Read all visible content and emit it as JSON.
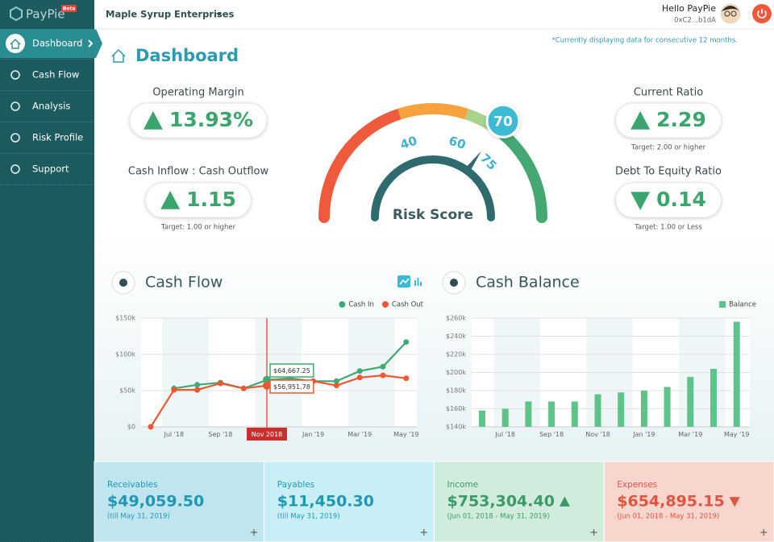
{
  "sidebar": {
    "brand": "PayPie",
    "badge": "Beta",
    "menu": [
      "Dashboard",
      "Cash Flow",
      "Analysis",
      "Risk Profile",
      "Support"
    ]
  },
  "topbar": {
    "company": "Maple Syrup Enterprises",
    "greeting": "Hello PayPie",
    "account": "0xC2...b1dA"
  },
  "page": {
    "title": "Dashboard",
    "note": "*Currently displaying data for consecutive 12 months."
  },
  "kpis": [
    {
      "label": "Operating Margin",
      "value": "13.93%",
      "direction": "up"
    },
    {
      "label": "Cash Inflow : Cash Outflow",
      "value": "1.15",
      "direction": "up",
      "target": "Target: 1.00 or higher"
    },
    {
      "label": "Current Ratio",
      "value": "2.29",
      "direction": "up",
      "target": "Target: 2.00 or higher"
    },
    {
      "label": "Debt To Equity Ratio",
      "value": "0.14",
      "direction": "down",
      "target": "Target: 1.00 or Less"
    }
  ],
  "risk": {
    "label": "Risk Score",
    "score": 70,
    "range": [
      0,
      100
    ],
    "ticks": [
      40,
      60,
      75
    ],
    "bands": [
      {
        "from": 0,
        "to": 40,
        "color": "#ef5a3c"
      },
      {
        "from": 40,
        "to": 60,
        "color": "#f7a23f"
      },
      {
        "from": 60,
        "to": 72,
        "color": "#a9d28c"
      },
      {
        "from": 72,
        "to": 100,
        "color": "#44a873"
      }
    ]
  },
  "chart_data": [
    {
      "type": "line",
      "title": "Cash Flow",
      "legend": "top-right",
      "grid": true,
      "categories": [
        null,
        "Jul '18",
        null,
        "Sep '18",
        null,
        "Nov 2018",
        null,
        "Jan '19",
        null,
        "Mar '19",
        null,
        "May '19"
      ],
      "series": [
        {
          "name": "Cash In",
          "color": "#3dab72",
          "values": [
            null,
            53000,
            58000,
            61000,
            53000,
            64667.25,
            67000,
            63000,
            63000,
            77000,
            83000,
            117000
          ],
          "value_labels": [
            null,
            null,
            null,
            null,
            null,
            "$64,667.25",
            null,
            null,
            null,
            null,
            null,
            null
          ]
        },
        {
          "name": "Cash Out",
          "color": "#f0562f",
          "values": [
            0,
            51000,
            51000,
            60000,
            53000,
            56951.78,
            62000,
            63000,
            57000,
            68000,
            71000,
            67000
          ],
          "value_labels": [
            null,
            null,
            null,
            null,
            null,
            "$56,951.78",
            null,
            null,
            null,
            null,
            null,
            null
          ]
        }
      ],
      "ylim": [
        0,
        150000
      ],
      "yticks": [
        {
          "value": 0,
          "label": "$0"
        },
        {
          "value": 50000,
          "label": "$50k"
        },
        {
          "value": 100000,
          "label": "$100k"
        },
        {
          "value": 150000,
          "label": "$150k"
        }
      ]
    },
    {
      "type": "bar",
      "title": "Cash Balance",
      "legend": "top-right",
      "grid": true,
      "categories": [
        null,
        "Jul '18",
        null,
        "Sep '18",
        null,
        "Nov '18",
        null,
        "Jan '19",
        null,
        "Mar '19",
        null,
        "May '19"
      ],
      "series": [
        {
          "name": "Balance",
          "color": "#5cc488",
          "values": [
            158000,
            160000,
            168000,
            168000,
            168000,
            176000,
            178000,
            180000,
            184000,
            195000,
            204000,
            256000
          ]
        }
      ],
      "ylim": [
        140000,
        260000
      ],
      "yticks": [
        {
          "value": 140000,
          "label": "$140k"
        },
        {
          "value": 160000,
          "label": "$160k"
        },
        {
          "value": 180000,
          "label": "$180k"
        },
        {
          "value": 200000,
          "label": "$200k"
        },
        {
          "value": 220000,
          "label": "$220k"
        },
        {
          "value": 240000,
          "label": "$240k"
        },
        {
          "value": 260000,
          "label": "$260k"
        }
      ]
    }
  ],
  "cards": [
    {
      "title": "Receivables",
      "amount": "$49,059.50",
      "period": "(till May 31, 2019)"
    },
    {
      "title": "Payables",
      "amount": "$11,450.30",
      "period": "(till May 31, 2019)"
    },
    {
      "title": "Income",
      "amount": "$753,304.40",
      "direction": "up",
      "period": "(Jun 01, 2018 - May 31, 2019)"
    },
    {
      "title": "Expenses",
      "amount": "$654,895.15",
      "direction": "down",
      "period": "(Jun 01, 2018 - May 31, 2019)"
    }
  ]
}
